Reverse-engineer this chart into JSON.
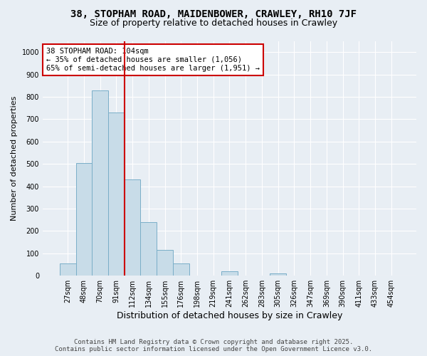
{
  "title1": "38, STOPHAM ROAD, MAIDENBOWER, CRAWLEY, RH10 7JF",
  "title2": "Size of property relative to detached houses in Crawley",
  "xlabel": "Distribution of detached houses by size in Crawley",
  "ylabel": "Number of detached properties",
  "categories": [
    "27sqm",
    "48sqm",
    "70sqm",
    "91sqm",
    "112sqm",
    "134sqm",
    "155sqm",
    "176sqm",
    "198sqm",
    "219sqm",
    "241sqm",
    "262sqm",
    "283sqm",
    "305sqm",
    "326sqm",
    "347sqm",
    "369sqm",
    "390sqm",
    "411sqm",
    "433sqm",
    "454sqm"
  ],
  "values": [
    55,
    505,
    830,
    730,
    430,
    240,
    115,
    55,
    0,
    0,
    20,
    0,
    0,
    10,
    0,
    0,
    0,
    0,
    0,
    0,
    0
  ],
  "bar_color": "#c8dce8",
  "bar_edgecolor": "#7aaec8",
  "vline_x_index": 3.5,
  "vline_color": "#cc0000",
  "annotation_text": "38 STOPHAM ROAD: 104sqm\n← 35% of detached houses are smaller (1,056)\n65% of semi-detached houses are larger (1,951) →",
  "annotation_box_color": "#ffffff",
  "annotation_box_edgecolor": "#cc0000",
  "ylim": [
    0,
    1050
  ],
  "yticks": [
    0,
    100,
    200,
    300,
    400,
    500,
    600,
    700,
    800,
    900,
    1000
  ],
  "background_color": "#e8eef4",
  "footer1": "Contains HM Land Registry data © Crown copyright and database right 2025.",
  "footer2": "Contains public sector information licensed under the Open Government Licence v3.0.",
  "grid_color": "#ffffff",
  "title_fontsize": 10,
  "subtitle_fontsize": 9,
  "annotation_fontsize": 7.5,
  "ylabel_fontsize": 8,
  "xlabel_fontsize": 9,
  "tick_fontsize": 7,
  "footer_fontsize": 6.5
}
